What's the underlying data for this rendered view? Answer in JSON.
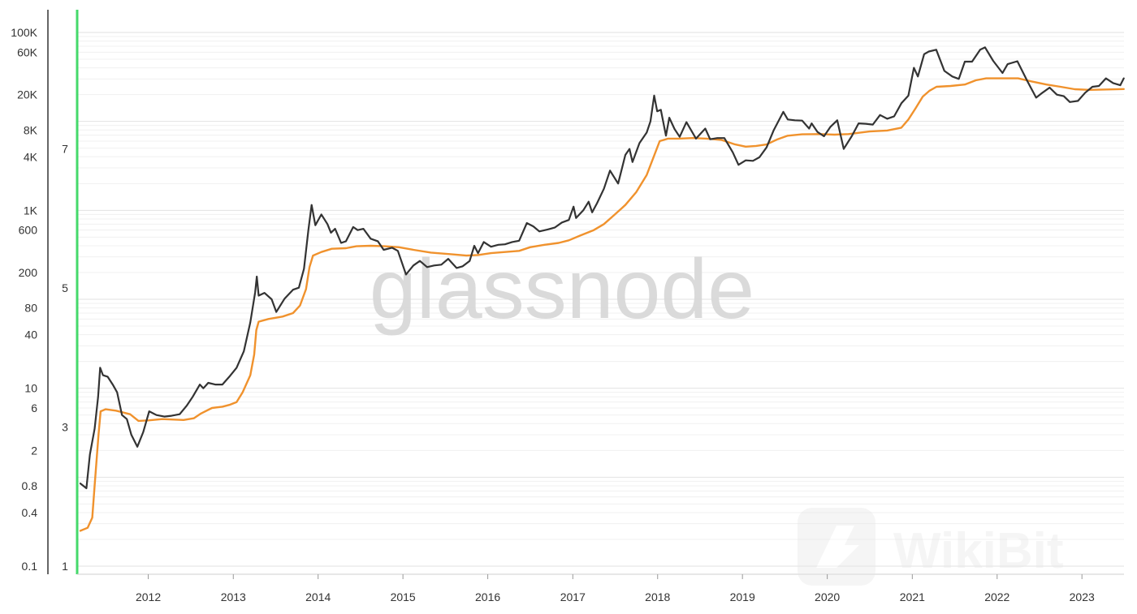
{
  "chart_data": {
    "type": "line",
    "title": "",
    "watermark_text": "glassnode",
    "corner_watermark_text": "WikiBit",
    "x_axis": {
      "type": "date",
      "range": [
        "2011-03-01",
        "2023-07-01"
      ],
      "tick_labels": [
        "2012",
        "2013",
        "2014",
        "2015",
        "2016",
        "2017",
        "2018",
        "2019",
        "2020",
        "2021",
        "2022",
        "2023"
      ]
    },
    "y_axis_price": {
      "scale": "log",
      "range": [
        0.1,
        100000
      ],
      "tick_labels": [
        "100K",
        "60K",
        "20K",
        "8K",
        "4K",
        "1K",
        "600",
        "200",
        "80",
        "40",
        "10",
        "6",
        "2",
        "0.8",
        "0.4",
        "0.1"
      ],
      "tick_values": [
        100000,
        60000,
        20000,
        8000,
        4000,
        1000,
        600,
        200,
        80,
        40,
        10,
        6,
        2,
        0.8,
        0.4,
        0.1
      ]
    },
    "y_axis_secondary": {
      "scale": "linear",
      "range": [
        1,
        8
      ],
      "tick_labels": [
        "7",
        "5",
        "3",
        "1"
      ],
      "tick_values": [
        7,
        5,
        3,
        1
      ],
      "color_bar": "#45d96b"
    },
    "grid": true,
    "series": [
      {
        "color": "#333333",
        "points": [
          [
            "2011-03-15",
            0.85
          ],
          [
            "2011-04-10",
            0.75
          ],
          [
            "2011-04-25",
            1.8
          ],
          [
            "2011-05-15",
            3.5
          ],
          [
            "2011-05-30",
            8
          ],
          [
            "2011-06-08",
            17
          ],
          [
            "2011-06-20",
            14
          ],
          [
            "2011-07-10",
            13.5
          ],
          [
            "2011-08-01",
            11
          ],
          [
            "2011-08-20",
            9
          ],
          [
            "2011-09-10",
            5
          ],
          [
            "2011-10-01",
            4.5
          ],
          [
            "2011-10-20",
            3
          ],
          [
            "2011-11-15",
            2.2
          ],
          [
            "2011-12-10",
            3.2
          ],
          [
            "2012-01-05",
            5.5
          ],
          [
            "2012-02-05",
            5
          ],
          [
            "2012-03-10",
            4.8
          ],
          [
            "2012-04-10",
            4.9
          ],
          [
            "2012-05-15",
            5.1
          ],
          [
            "2012-06-15",
            6.4
          ],
          [
            "2012-07-10",
            8
          ],
          [
            "2012-08-10",
            11
          ],
          [
            "2012-08-25",
            10
          ],
          [
            "2012-09-15",
            11.5
          ],
          [
            "2012-10-15",
            11
          ],
          [
            "2012-11-15",
            11
          ],
          [
            "2012-12-15",
            13.5
          ],
          [
            "2013-01-15",
            17
          ],
          [
            "2013-02-15",
            26
          ],
          [
            "2013-03-15",
            55
          ],
          [
            "2013-04-05",
            120
          ],
          [
            "2013-04-12",
            180
          ],
          [
            "2013-04-20",
            110
          ],
          [
            "2013-05-15",
            118
          ],
          [
            "2013-06-15",
            100
          ],
          [
            "2013-07-05",
            72
          ],
          [
            "2013-08-10",
            102
          ],
          [
            "2013-09-15",
            128
          ],
          [
            "2013-10-10",
            135
          ],
          [
            "2013-11-01",
            220
          ],
          [
            "2013-11-20",
            600
          ],
          [
            "2013-12-04",
            1150
          ],
          [
            "2013-12-20",
            680
          ],
          [
            "2014-01-15",
            900
          ],
          [
            "2014-02-10",
            700
          ],
          [
            "2014-02-25",
            560
          ],
          [
            "2014-03-15",
            620
          ],
          [
            "2014-04-10",
            430
          ],
          [
            "2014-05-01",
            450
          ],
          [
            "2014-06-01",
            650
          ],
          [
            "2014-06-20",
            600
          ],
          [
            "2014-07-15",
            620
          ],
          [
            "2014-08-15",
            480
          ],
          [
            "2014-09-15",
            450
          ],
          [
            "2014-10-10",
            360
          ],
          [
            "2014-11-15",
            380
          ],
          [
            "2014-12-10",
            350
          ],
          [
            "2015-01-14",
            190
          ],
          [
            "2015-02-15",
            240
          ],
          [
            "2015-03-15",
            270
          ],
          [
            "2015-04-15",
            230
          ],
          [
            "2015-05-15",
            240
          ],
          [
            "2015-06-15",
            245
          ],
          [
            "2015-07-15",
            285
          ],
          [
            "2015-08-20",
            225
          ],
          [
            "2015-09-15",
            235
          ],
          [
            "2015-10-15",
            270
          ],
          [
            "2015-11-04",
            400
          ],
          [
            "2015-11-20",
            330
          ],
          [
            "2015-12-15",
            440
          ],
          [
            "2016-01-15",
            390
          ],
          [
            "2016-02-15",
            410
          ],
          [
            "2016-03-15",
            415
          ],
          [
            "2016-04-15",
            440
          ],
          [
            "2016-05-15",
            455
          ],
          [
            "2016-06-17",
            720
          ],
          [
            "2016-07-15",
            660
          ],
          [
            "2016-08-10",
            580
          ],
          [
            "2016-09-15",
            610
          ],
          [
            "2016-10-15",
            640
          ],
          [
            "2016-11-15",
            730
          ],
          [
            "2016-12-15",
            780
          ],
          [
            "2017-01-04",
            1100
          ],
          [
            "2017-01-15",
            820
          ],
          [
            "2017-02-15",
            1000
          ],
          [
            "2017-03-10",
            1250
          ],
          [
            "2017-03-25",
            950
          ],
          [
            "2017-04-15",
            1200
          ],
          [
            "2017-05-15",
            1750
          ],
          [
            "2017-06-10",
            2800
          ],
          [
            "2017-07-15",
            2000
          ],
          [
            "2017-08-15",
            4200
          ],
          [
            "2017-09-02",
            4900
          ],
          [
            "2017-09-15",
            3500
          ],
          [
            "2017-10-15",
            5700
          ],
          [
            "2017-11-15",
            7500
          ],
          [
            "2017-12-01",
            10000
          ],
          [
            "2017-12-17",
            19500
          ],
          [
            "2017-12-30",
            13000
          ],
          [
            "2018-01-15",
            13500
          ],
          [
            "2018-02-06",
            6900
          ],
          [
            "2018-02-20",
            11000
          ],
          [
            "2018-03-15",
            8200
          ],
          [
            "2018-04-06",
            6700
          ],
          [
            "2018-05-05",
            9800
          ],
          [
            "2018-06-15",
            6400
          ],
          [
            "2018-07-25",
            8300
          ],
          [
            "2018-08-15",
            6300
          ],
          [
            "2018-09-15",
            6500
          ],
          [
            "2018-10-15",
            6500
          ],
          [
            "2018-11-20",
            4500
          ],
          [
            "2018-12-15",
            3250
          ],
          [
            "2019-01-15",
            3650
          ],
          [
            "2019-02-15",
            3600
          ],
          [
            "2019-03-15",
            3950
          ],
          [
            "2019-04-15",
            5100
          ],
          [
            "2019-05-15",
            7900
          ],
          [
            "2019-06-26",
            12800
          ],
          [
            "2019-07-15",
            10500
          ],
          [
            "2019-08-15",
            10300
          ],
          [
            "2019-09-15",
            10200
          ],
          [
            "2019-10-15",
            8300
          ],
          [
            "2019-10-26",
            9500
          ],
          [
            "2019-11-20",
            7600
          ],
          [
            "2019-12-18",
            6800
          ],
          [
            "2020-01-15",
            8700
          ],
          [
            "2020-02-13",
            10300
          ],
          [
            "2020-03-12",
            4900
          ],
          [
            "2020-04-15",
            6800
          ],
          [
            "2020-05-15",
            9500
          ],
          [
            "2020-06-15",
            9400
          ],
          [
            "2020-07-15",
            9200
          ],
          [
            "2020-08-15",
            11800
          ],
          [
            "2020-09-15",
            10700
          ],
          [
            "2020-10-15",
            11400
          ],
          [
            "2020-11-15",
            16000
          ],
          [
            "2020-12-15",
            19500
          ],
          [
            "2021-01-08",
            40000
          ],
          [
            "2021-01-25",
            32000
          ],
          [
            "2021-02-21",
            57000
          ],
          [
            "2021-03-13",
            61000
          ],
          [
            "2021-04-14",
            64000
          ],
          [
            "2021-05-19",
            37000
          ],
          [
            "2021-06-22",
            32000
          ],
          [
            "2021-07-20",
            30000
          ],
          [
            "2021-08-15",
            47000
          ],
          [
            "2021-09-15",
            47000
          ],
          [
            "2021-10-20",
            64000
          ],
          [
            "2021-11-10",
            68000
          ],
          [
            "2021-12-15",
            48000
          ],
          [
            "2022-01-24",
            35000
          ],
          [
            "2022-02-15",
            44000
          ],
          [
            "2022-03-29",
            47500
          ],
          [
            "2022-05-12",
            28000
          ],
          [
            "2022-06-18",
            18500
          ],
          [
            "2022-07-15",
            21000
          ],
          [
            "2022-08-15",
            24000
          ],
          [
            "2022-09-15",
            20000
          ],
          [
            "2022-10-15",
            19200
          ],
          [
            "2022-11-10",
            16500
          ],
          [
            "2022-12-15",
            17000
          ],
          [
            "2023-01-15",
            21000
          ],
          [
            "2023-02-15",
            24500
          ],
          [
            "2023-03-15",
            25000
          ],
          [
            "2023-04-14",
            30500
          ],
          [
            "2023-05-15",
            27000
          ],
          [
            "2023-06-15",
            25500
          ],
          [
            "2023-06-30",
            30500
          ]
        ]
      },
      {
        "color": "#f0922d",
        "points": [
          [
            "2011-03-15",
            0.25
          ],
          [
            "2011-04-15",
            0.27
          ],
          [
            "2011-05-05",
            0.35
          ],
          [
            "2011-05-15",
            0.8
          ],
          [
            "2011-06-01",
            3
          ],
          [
            "2011-06-10",
            5.5
          ],
          [
            "2011-07-01",
            5.8
          ],
          [
            "2011-08-15",
            5.6
          ],
          [
            "2011-10-15",
            5.1
          ],
          [
            "2011-11-20",
            4.3
          ],
          [
            "2012-01-01",
            4.35
          ],
          [
            "2012-03-01",
            4.5
          ],
          [
            "2012-06-01",
            4.4
          ],
          [
            "2012-07-15",
            4.6
          ],
          [
            "2012-08-15",
            5.2
          ],
          [
            "2012-10-01",
            6
          ],
          [
            "2012-11-15",
            6.2
          ],
          [
            "2012-12-15",
            6.5
          ],
          [
            "2013-01-15",
            7
          ],
          [
            "2013-02-10",
            9
          ],
          [
            "2013-03-15",
            14
          ],
          [
            "2013-04-01",
            24
          ],
          [
            "2013-04-10",
            45
          ],
          [
            "2013-04-20",
            56
          ],
          [
            "2013-06-01",
            60
          ],
          [
            "2013-08-01",
            64
          ],
          [
            "2013-09-15",
            70
          ],
          [
            "2013-10-15",
            85
          ],
          [
            "2013-11-10",
            130
          ],
          [
            "2013-11-25",
            230
          ],
          [
            "2013-12-10",
            310
          ],
          [
            "2014-01-15",
            340
          ],
          [
            "2014-03-01",
            370
          ],
          [
            "2014-05-01",
            375
          ],
          [
            "2014-06-15",
            395
          ],
          [
            "2014-08-15",
            400
          ],
          [
            "2014-10-15",
            395
          ],
          [
            "2014-12-15",
            385
          ],
          [
            "2015-02-15",
            360
          ],
          [
            "2015-05-01",
            335
          ],
          [
            "2015-08-01",
            320
          ],
          [
            "2015-10-01",
            310
          ],
          [
            "2015-11-20",
            315
          ],
          [
            "2016-01-15",
            330
          ],
          [
            "2016-03-15",
            340
          ],
          [
            "2016-05-15",
            350
          ],
          [
            "2016-07-01",
            385
          ],
          [
            "2016-09-01",
            410
          ],
          [
            "2016-11-01",
            430
          ],
          [
            "2016-12-15",
            460
          ],
          [
            "2017-02-01",
            520
          ],
          [
            "2017-04-01",
            600
          ],
          [
            "2017-05-15",
            700
          ],
          [
            "2017-07-01",
            900
          ],
          [
            "2017-08-15",
            1150
          ],
          [
            "2017-10-01",
            1600
          ],
          [
            "2017-11-15",
            2500
          ],
          [
            "2017-12-15",
            4000
          ],
          [
            "2018-01-10",
            6000
          ],
          [
            "2018-02-15",
            6400
          ],
          [
            "2018-04-01",
            6400
          ],
          [
            "2018-06-01",
            6500
          ],
          [
            "2018-08-01",
            6400
          ],
          [
            "2018-10-01",
            6200
          ],
          [
            "2018-12-01",
            5500
          ],
          [
            "2019-01-15",
            5200
          ],
          [
            "2019-03-01",
            5300
          ],
          [
            "2019-04-15",
            5500
          ],
          [
            "2019-06-01",
            6300
          ],
          [
            "2019-07-15",
            6900
          ],
          [
            "2019-09-15",
            7150
          ],
          [
            "2019-12-01",
            7200
          ],
          [
            "2020-02-01",
            7100
          ],
          [
            "2020-04-01",
            7200
          ],
          [
            "2020-07-01",
            7700
          ],
          [
            "2020-09-15",
            7900
          ],
          [
            "2020-11-15",
            8500
          ],
          [
            "2020-12-15",
            10500
          ],
          [
            "2021-01-15",
            14000
          ],
          [
            "2021-02-15",
            19000
          ],
          [
            "2021-03-15",
            22000
          ],
          [
            "2021-04-15",
            24500
          ],
          [
            "2021-06-15",
            25000
          ],
          [
            "2021-08-15",
            26000
          ],
          [
            "2021-10-01",
            29000
          ],
          [
            "2021-11-15",
            30500
          ],
          [
            "2022-01-15",
            30500
          ],
          [
            "2022-04-01",
            30500
          ],
          [
            "2022-06-01",
            28000
          ],
          [
            "2022-08-01",
            26000
          ],
          [
            "2022-10-01",
            24500
          ],
          [
            "2022-12-01",
            23000
          ],
          [
            "2023-02-01",
            22600
          ],
          [
            "2023-04-01",
            22800
          ],
          [
            "2023-06-30",
            23100
          ]
        ]
      }
    ]
  }
}
